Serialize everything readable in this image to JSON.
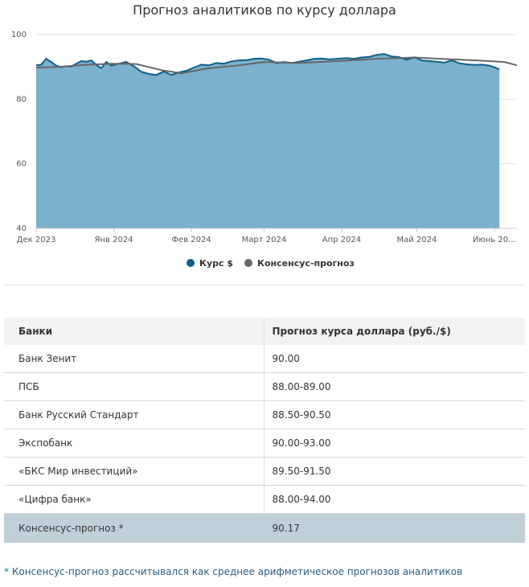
{
  "chart_data": {
    "type": "area",
    "title": "Прогноз аналитиков по курсу доллара",
    "xlabel": "",
    "ylabel": "",
    "ylim": [
      40,
      100
    ],
    "y_ticks": [
      "100",
      "80",
      "60",
      "40"
    ],
    "x_range": [
      "2023-12-01",
      "2024-06-10"
    ],
    "x_ticks": [
      {
        "label": "Дек 2023",
        "date": "2023-12-01"
      },
      {
        "label": "Янв 2024",
        "date": "2024-01-01"
      },
      {
        "label": "Фев 2024",
        "date": "2024-02-01"
      },
      {
        "label": "Март 2024",
        "date": "2024-03-01"
      },
      {
        "label": "Апр 2024",
        "date": "2024-04-01"
      },
      {
        "label": "Май 2024",
        "date": "2024-05-01"
      },
      {
        "label": "Июнь 20…",
        "date": "2024-06-01"
      }
    ],
    "grid": true,
    "legend_position": "bottom",
    "series": [
      {
        "name": "Курс $",
        "color": "#0d5f8a",
        "fill": "#7bb1cc",
        "points": [
          [
            "2023-12-01",
            90.5
          ],
          [
            "2023-12-03",
            90.7
          ],
          [
            "2023-12-05",
            92.5
          ],
          [
            "2023-12-07",
            91.5
          ],
          [
            "2023-12-09",
            90.4
          ],
          [
            "2023-12-11",
            89.9
          ],
          [
            "2023-12-13",
            90.2
          ],
          [
            "2023-12-15",
            90.1
          ],
          [
            "2023-12-17",
            91.0
          ],
          [
            "2023-12-19",
            91.8
          ],
          [
            "2023-12-21",
            91.6
          ],
          [
            "2023-12-23",
            92.0
          ],
          [
            "2023-12-25",
            90.6
          ],
          [
            "2023-12-27",
            89.6
          ],
          [
            "2023-12-29",
            91.5
          ],
          [
            "2023-12-31",
            90.4
          ],
          [
            "2024-01-03",
            91.0
          ],
          [
            "2024-01-06",
            91.5
          ],
          [
            "2024-01-09",
            90.2
          ],
          [
            "2024-01-12",
            88.5
          ],
          [
            "2024-01-15",
            87.8
          ],
          [
            "2024-01-18",
            87.5
          ],
          [
            "2024-01-21",
            88.6
          ],
          [
            "2024-01-24",
            87.5
          ],
          [
            "2024-01-27",
            88.3
          ],
          [
            "2024-01-30",
            88.8
          ],
          [
            "2024-02-02",
            89.8
          ],
          [
            "2024-02-05",
            90.7
          ],
          [
            "2024-02-08",
            90.5
          ],
          [
            "2024-02-11",
            91.2
          ],
          [
            "2024-02-14",
            91.0
          ],
          [
            "2024-02-17",
            91.7
          ],
          [
            "2024-02-20",
            92.0
          ],
          [
            "2024-02-23",
            92.1
          ],
          [
            "2024-02-26",
            92.5
          ],
          [
            "2024-02-29",
            92.6
          ],
          [
            "2024-03-03",
            92.2
          ],
          [
            "2024-03-06",
            91.2
          ],
          [
            "2024-03-09",
            91.5
          ],
          [
            "2024-03-12",
            91.2
          ],
          [
            "2024-03-15",
            91.6
          ],
          [
            "2024-03-18",
            92.0
          ],
          [
            "2024-03-21",
            92.5
          ],
          [
            "2024-03-24",
            92.6
          ],
          [
            "2024-03-27",
            92.3
          ],
          [
            "2024-03-30",
            92.5
          ],
          [
            "2024-04-03",
            92.7
          ],
          [
            "2024-04-06",
            92.5
          ],
          [
            "2024-04-09",
            92.9
          ],
          [
            "2024-04-12",
            93.1
          ],
          [
            "2024-04-15",
            93.7
          ],
          [
            "2024-04-18",
            94.0
          ],
          [
            "2024-04-21",
            93.2
          ],
          [
            "2024-04-24",
            93.0
          ],
          [
            "2024-04-27",
            92.2
          ],
          [
            "2024-04-30",
            93.0
          ],
          [
            "2024-05-03",
            92.0
          ],
          [
            "2024-05-06",
            91.8
          ],
          [
            "2024-05-09",
            91.6
          ],
          [
            "2024-05-12",
            91.3
          ],
          [
            "2024-05-15",
            92.0
          ],
          [
            "2024-05-18",
            91.1
          ],
          [
            "2024-05-21",
            90.8
          ],
          [
            "2024-05-24",
            90.6
          ],
          [
            "2024-05-27",
            90.7
          ],
          [
            "2024-05-30",
            90.4
          ],
          [
            "2024-06-01",
            89.9
          ],
          [
            "2024-06-03",
            89.2
          ]
        ]
      },
      {
        "name": "Консенсус-прогноз",
        "color": "#666666",
        "points": [
          [
            "2023-12-01",
            89.8
          ],
          [
            "2023-12-10",
            90.0
          ],
          [
            "2023-12-20",
            90.6
          ],
          [
            "2023-12-31",
            91.0
          ],
          [
            "2024-01-10",
            90.9
          ],
          [
            "2024-01-20",
            89.0
          ],
          [
            "2024-01-28",
            88.0
          ],
          [
            "2024-02-07",
            89.5
          ],
          [
            "2024-02-20",
            90.5
          ],
          [
            "2024-03-01",
            91.5
          ],
          [
            "2024-03-15",
            91.2
          ],
          [
            "2024-03-31",
            91.8
          ],
          [
            "2024-04-15",
            92.5
          ],
          [
            "2024-04-30",
            92.9
          ],
          [
            "2024-05-10",
            92.5
          ],
          [
            "2024-05-25",
            92.0
          ],
          [
            "2024-06-05",
            91.5
          ],
          [
            "2024-06-10",
            90.5
          ]
        ]
      }
    ]
  },
  "table": {
    "headers": [
      "Банки",
      "Прогноз курса доллара (руб./$)"
    ],
    "rows": [
      {
        "bank": "Банк Зенит",
        "forecast": "90.00"
      },
      {
        "bank": "ПСБ",
        "forecast": "88.00-89.00"
      },
      {
        "bank": "Банк Русский Стандарт",
        "forecast": "88.50-90.50"
      },
      {
        "bank": "Экспобанк",
        "forecast": "90.00-93.00"
      },
      {
        "bank": "«БКС Мир инвестиций»",
        "forecast": "89.50-91.50"
      },
      {
        "bank": "«Цифра банк»",
        "forecast": "88.00-94.00"
      }
    ],
    "consensus": {
      "bank": "Консенсус-прогноз *",
      "forecast": "90.17"
    }
  },
  "footnote": {
    "star": "*",
    "text": "Консенсус-прогноз рассчитывался как среднее арифметическое прогнозов аналитиков"
  }
}
